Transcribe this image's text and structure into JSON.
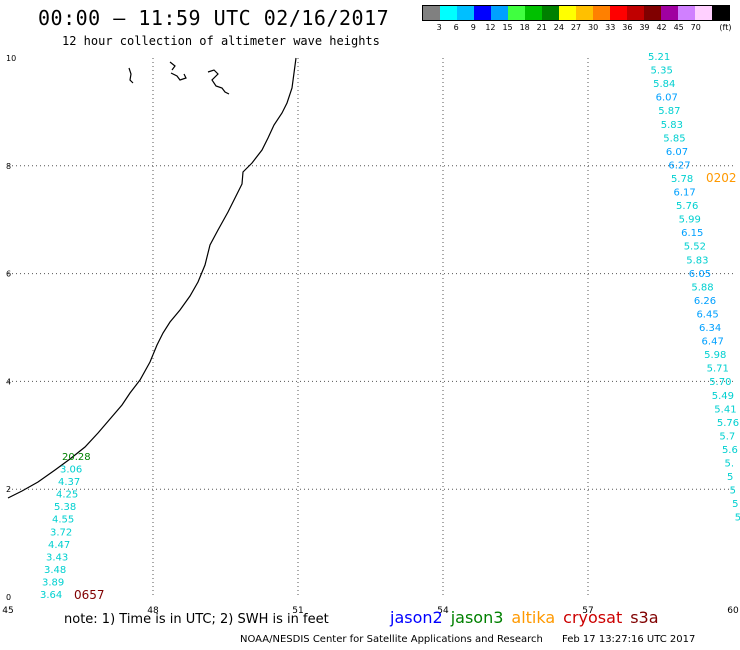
{
  "header": {
    "title": "00:00 – 11:59 UTC 02/16/2017",
    "subtitle": "12 hour collection of altimeter wave heights"
  },
  "legend": {
    "unit": "(ft)",
    "items": [
      {
        "label": "",
        "color": "#808080"
      },
      {
        "label": "3",
        "color": "#00ffff"
      },
      {
        "label": "6",
        "color": "#00bfff"
      },
      {
        "label": "9",
        "color": "#0000ff"
      },
      {
        "label": "12",
        "color": "#00a0ff"
      },
      {
        "label": "15",
        "color": "#40ff40"
      },
      {
        "label": "18",
        "color": "#00c000"
      },
      {
        "label": "21",
        "color": "#008000"
      },
      {
        "label": "24",
        "color": "#ffff00"
      },
      {
        "label": "27",
        "color": "#ffc000"
      },
      {
        "label": "30",
        "color": "#ff8000"
      },
      {
        "label": "33",
        "color": "#ff0000"
      },
      {
        "label": "36",
        "color": "#c00000"
      },
      {
        "label": "39",
        "color": "#800000"
      },
      {
        "label": "42",
        "color": "#a000a0"
      },
      {
        "label": "45",
        "color": "#d080ff"
      },
      {
        "label": "70",
        "color": "#ffd0ff"
      },
      {
        "label": "",
        "color": "#000000"
      }
    ]
  },
  "map": {
    "x_ticks": [
      "45",
      "48",
      "51",
      "54",
      "57",
      "60"
    ],
    "y_ticks": [
      "0",
      "2",
      "4",
      "6",
      "8",
      "10"
    ]
  },
  "tracks": {
    "left": {
      "time_label": "0657",
      "time_color": "#800000",
      "values": [
        {
          "v": "20.28",
          "color": "#008000"
        },
        {
          "v": "3.06",
          "color": "#00d0d0"
        },
        {
          "v": "4.37",
          "color": "#00d0d0"
        },
        {
          "v": "4.25",
          "color": "#00d0d0"
        },
        {
          "v": "5.38",
          "color": "#00d0d0"
        },
        {
          "v": "4.55",
          "color": "#00d0d0"
        },
        {
          "v": "3.72",
          "color": "#00d0d0"
        },
        {
          "v": "4.47",
          "color": "#00d0d0"
        },
        {
          "v": "3.43",
          "color": "#00d0d0"
        },
        {
          "v": "3.48",
          "color": "#00d0d0"
        },
        {
          "v": "3.89",
          "color": "#00d0d0"
        },
        {
          "v": "3.64",
          "color": "#00d0d0"
        }
      ]
    },
    "right": {
      "time_label": "0202",
      "time_color": "#ff9900",
      "values": [
        {
          "v": "5.21",
          "color": "#00d0d0"
        },
        {
          "v": "5.35",
          "color": "#00d0d0"
        },
        {
          "v": "5.84",
          "color": "#00d0d0"
        },
        {
          "v": "6.07",
          "color": "#00a0ff"
        },
        {
          "v": "5.87",
          "color": "#00d0d0"
        },
        {
          "v": "5.83",
          "color": "#00d0d0"
        },
        {
          "v": "5.85",
          "color": "#00d0d0"
        },
        {
          "v": "6.07",
          "color": "#00a0ff"
        },
        {
          "v": "6.27",
          "color": "#00a0ff"
        },
        {
          "v": "5.78",
          "color": "#00d0d0"
        },
        {
          "v": "6.17",
          "color": "#00a0ff"
        },
        {
          "v": "5.76",
          "color": "#00d0d0"
        },
        {
          "v": "5.99",
          "color": "#00d0d0"
        },
        {
          "v": "6.15",
          "color": "#00a0ff"
        },
        {
          "v": "5.52",
          "color": "#00d0d0"
        },
        {
          "v": "5.83",
          "color": "#00d0d0"
        },
        {
          "v": "6.05",
          "color": "#00a0ff"
        },
        {
          "v": "5.88",
          "color": "#00d0d0"
        },
        {
          "v": "6.26",
          "color": "#00a0ff"
        },
        {
          "v": "6.45",
          "color": "#00a0ff"
        },
        {
          "v": "6.34",
          "color": "#00a0ff"
        },
        {
          "v": "6.47",
          "color": "#00a0ff"
        },
        {
          "v": "5.98",
          "color": "#00d0d0"
        },
        {
          "v": "5.71",
          "color": "#00d0d0"
        },
        {
          "v": "5.70",
          "color": "#00d0d0"
        },
        {
          "v": "5.49",
          "color": "#00d0d0"
        },
        {
          "v": "5.41",
          "color": "#00d0d0"
        },
        {
          "v": "5.76",
          "color": "#00d0d0"
        },
        {
          "v": "5.7",
          "color": "#00d0d0"
        },
        {
          "v": "5.6",
          "color": "#00d0d0"
        },
        {
          "v": "5.",
          "color": "#00d0d0"
        },
        {
          "v": "5",
          "color": "#00d0d0"
        },
        {
          "v": "5",
          "color": "#00d0d0"
        },
        {
          "v": "5",
          "color": "#00d0d0"
        },
        {
          "v": "5",
          "color": "#00d0d0"
        }
      ]
    }
  },
  "footer": {
    "note": "note: 1) Time is in UTC; 2) SWH is in feet",
    "satellites": [
      {
        "name": "jason2",
        "color": "#0000ff"
      },
      {
        "name": "jason3",
        "color": "#008000"
      },
      {
        "name": "altika",
        "color": "#ff9900"
      },
      {
        "name": "cryosat",
        "color": "#cc0000"
      },
      {
        "name": "s3a",
        "color": "#800000"
      }
    ],
    "credit": "NOAA/NESDIS Center for Satellite Applications and Research",
    "timestamp": "Feb 17 13:27:16 UTC 2017"
  }
}
